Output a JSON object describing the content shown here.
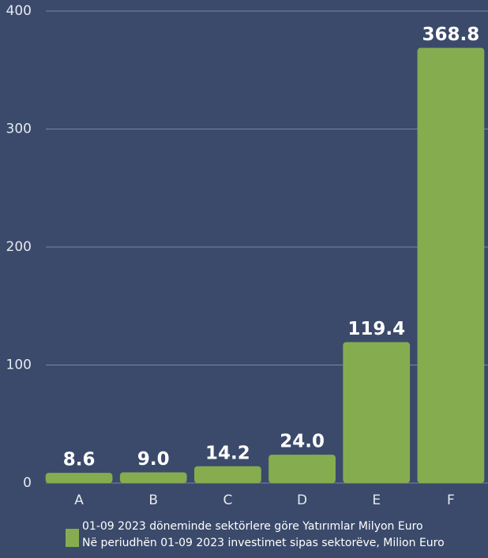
{
  "chart_data": {
    "type": "bar",
    "categories": [
      "A",
      "B",
      "C",
      "D",
      "E",
      "F"
    ],
    "values": [
      8.6,
      9.0,
      14.2,
      24.0,
      119.4,
      368.8
    ],
    "value_labels": [
      "8.6",
      "9.0",
      "14.2",
      "24.0",
      "119.4",
      "368.8"
    ],
    "color": "#85ad4f",
    "ylim": [
      0,
      400
    ],
    "yticks": [
      0,
      100,
      200,
      300,
      400
    ],
    "grid": true,
    "legend": [
      "01-09 2023 döneminde sektörlere göre Yatırımlar  Milyon Euro",
      "Në periudhën 01-09 2023 investimet sipas sektorëve, Milion Euro"
    ]
  }
}
